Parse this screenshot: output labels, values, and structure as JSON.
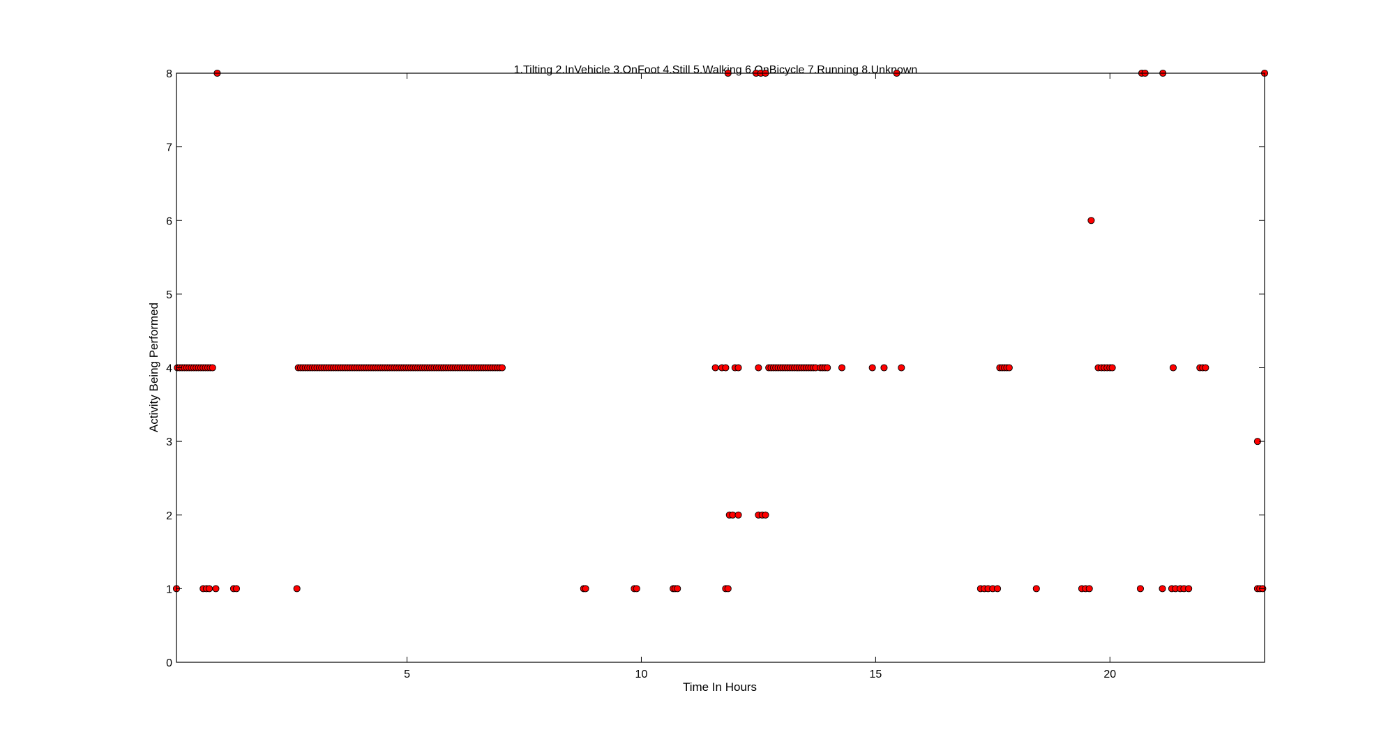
{
  "chart_data": {
    "type": "scatter",
    "title": "1.Tilting 2.InVehicle 3.OnFoot 4.Still 5.Walking 6.OnBicycle 7.Running 8.Unknown",
    "xlabel": "Time In Hours",
    "ylabel": "Activity Being Performed",
    "xlim": [
      0.08,
      23.3
    ],
    "ylim": [
      0,
      8
    ],
    "xticks": [
      5,
      10,
      15,
      20
    ],
    "yticks": [
      0,
      1,
      2,
      3,
      4,
      5,
      6,
      7,
      8
    ],
    "grid": false,
    "marker_color": "#ff0000",
    "marker_edge_color": "#000000",
    "series": [
      {
        "points": [
          {
            "x": 0.08,
            "y": 1
          },
          {
            "x": 0.65,
            "y": 1
          },
          {
            "x": 0.72,
            "y": 1
          },
          {
            "x": 0.78,
            "y": 1
          },
          {
            "x": 0.92,
            "y": 1
          },
          {
            "x": 1.3,
            "y": 1
          },
          {
            "x": 1.36,
            "y": 1
          },
          {
            "x": 2.65,
            "y": 1
          },
          {
            "x": 8.77,
            "y": 1
          },
          {
            "x": 8.81,
            "y": 1
          },
          {
            "x": 9.85,
            "y": 1
          },
          {
            "x": 9.9,
            "y": 1
          },
          {
            "x": 10.68,
            "y": 1
          },
          {
            "x": 10.72,
            "y": 1
          },
          {
            "x": 10.77,
            "y": 1
          },
          {
            "x": 11.8,
            "y": 1
          },
          {
            "x": 11.85,
            "y": 1
          },
          {
            "x": 17.24,
            "y": 1
          },
          {
            "x": 17.32,
            "y": 1
          },
          {
            "x": 17.4,
            "y": 1
          },
          {
            "x": 17.5,
            "y": 1
          },
          {
            "x": 17.6,
            "y": 1
          },
          {
            "x": 18.43,
            "y": 1
          },
          {
            "x": 19.4,
            "y": 1
          },
          {
            "x": 19.48,
            "y": 1
          },
          {
            "x": 19.56,
            "y": 1
          },
          {
            "x": 20.65,
            "y": 1
          },
          {
            "x": 21.12,
            "y": 1
          },
          {
            "x": 21.32,
            "y": 1
          },
          {
            "x": 21.4,
            "y": 1
          },
          {
            "x": 21.5,
            "y": 1
          },
          {
            "x": 21.58,
            "y": 1
          },
          {
            "x": 21.68,
            "y": 1
          },
          {
            "x": 23.15,
            "y": 1
          },
          {
            "x": 23.2,
            "y": 1
          },
          {
            "x": 23.26,
            "y": 1
          },
          {
            "x": 11.88,
            "y": 2
          },
          {
            "x": 11.95,
            "y": 2
          },
          {
            "x": 12.07,
            "y": 2
          },
          {
            "x": 12.5,
            "y": 2
          },
          {
            "x": 12.58,
            "y": 2
          },
          {
            "x": 12.65,
            "y": 2
          },
          {
            "x": 23.15,
            "y": 3
          },
          {
            "x": 11.58,
            "y": 4
          },
          {
            "x": 11.72,
            "y": 4
          },
          {
            "x": 11.8,
            "y": 4
          },
          {
            "x": 12.0,
            "y": 4
          },
          {
            "x": 12.07,
            "y": 4
          },
          {
            "x": 12.5,
            "y": 4
          },
          {
            "x": 14.28,
            "y": 4
          },
          {
            "x": 14.93,
            "y": 4
          },
          {
            "x": 15.18,
            "y": 4
          },
          {
            "x": 15.55,
            "y": 4
          },
          {
            "x": 17.65,
            "y": 4
          },
          {
            "x": 17.7,
            "y": 4
          },
          {
            "x": 17.75,
            "y": 4
          },
          {
            "x": 17.8,
            "y": 4
          },
          {
            "x": 17.85,
            "y": 4
          },
          {
            "x": 19.75,
            "y": 4
          },
          {
            "x": 19.82,
            "y": 4
          },
          {
            "x": 19.88,
            "y": 4
          },
          {
            "x": 19.94,
            "y": 4
          },
          {
            "x": 20.0,
            "y": 4
          },
          {
            "x": 20.05,
            "y": 4
          },
          {
            "x": 21.35,
            "y": 4
          },
          {
            "x": 21.92,
            "y": 4
          },
          {
            "x": 21.98,
            "y": 4
          },
          {
            "x": 22.04,
            "y": 4
          },
          {
            "x": 19.6,
            "y": 6
          },
          {
            "x": 0.95,
            "y": 8
          },
          {
            "x": 11.85,
            "y": 8
          },
          {
            "x": 12.45,
            "y": 8
          },
          {
            "x": 12.55,
            "y": 8
          },
          {
            "x": 12.65,
            "y": 8
          },
          {
            "x": 15.45,
            "y": 8
          },
          {
            "x": 20.68,
            "y": 8
          },
          {
            "x": 20.75,
            "y": 8
          },
          {
            "x": 21.13,
            "y": 8
          },
          {
            "x": 23.3,
            "y": 8
          }
        ],
        "runs": [
          {
            "y": 4,
            "x_start": 0.1,
            "x_end": 0.6,
            "step": 0.05
          },
          {
            "y": 4,
            "x_start": 0.65,
            "x_end": 0.88,
            "step": 0.05
          },
          {
            "y": 4,
            "x_start": 2.68,
            "x_end": 7.04,
            "step": 0.05
          },
          {
            "y": 4,
            "x_start": 12.72,
            "x_end": 13.76,
            "step": 0.05
          },
          {
            "y": 4,
            "x_start": 13.82,
            "x_end": 13.98,
            "step": 0.05
          }
        ]
      }
    ]
  }
}
